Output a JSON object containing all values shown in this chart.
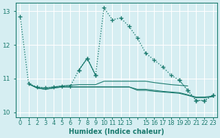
{
  "xlabel": "Humidex (Indice chaleur)",
  "background_color": "#d6eef2",
  "grid_color": "#ffffff",
  "line_color": "#1a7a6e",
  "xlim": [
    -0.5,
    23.5
  ],
  "ylim": [
    9.85,
    13.25
  ],
  "yticks": [
    10,
    11,
    12,
    13
  ],
  "xtick_labels": [
    "0",
    "1",
    "2",
    "3",
    "4",
    "5",
    "6",
    "7",
    "8",
    "9",
    "10",
    "11",
    "12",
    "13",
    "",
    "15",
    "16",
    "17",
    "18",
    "19",
    "20",
    "21",
    "22",
    "23"
  ],
  "series": [
    {
      "x": [
        0,
        1,
        2,
        3,
        4,
        5,
        6,
        7,
        8,
        9,
        10,
        11,
        12,
        13,
        14,
        15,
        16,
        17,
        18,
        19,
        20,
        21,
        22,
        23
      ],
      "y": [
        12.85,
        10.85,
        10.75,
        10.72,
        10.75,
        10.78,
        10.78,
        11.25,
        11.6,
        11.1,
        13.1,
        12.75,
        12.8,
        12.55,
        12.2,
        11.75,
        11.55,
        11.35,
        11.1,
        10.95,
        10.65,
        10.35,
        10.35,
        10.5
      ],
      "linestyle": "dotted",
      "linewidth": 1.0,
      "marker": "+",
      "markersize": 4
    },
    {
      "x": [
        1,
        2,
        3,
        4,
        5,
        6,
        7,
        8,
        9,
        10,
        11,
        12,
        13,
        14,
        15,
        16,
        17,
        18,
        19,
        20
      ],
      "y": [
        10.84,
        10.74,
        10.72,
        10.75,
        10.78,
        10.8,
        10.82,
        10.82,
        10.82,
        10.92,
        10.92,
        10.92,
        10.92,
        10.92,
        10.92,
        10.88,
        10.85,
        10.82,
        10.8,
        10.78
      ],
      "linestyle": "solid",
      "linewidth": 0.8,
      "marker": null,
      "markersize": 0
    },
    {
      "x": [
        1,
        2,
        3,
        4,
        5,
        6,
        7,
        8,
        9,
        10,
        11,
        12,
        13,
        14,
        15,
        16,
        17,
        18,
        19,
        20,
        21,
        22,
        23
      ],
      "y": [
        10.84,
        10.72,
        10.68,
        10.72,
        10.75,
        10.75,
        10.75,
        10.75,
        10.75,
        10.75,
        10.75,
        10.75,
        10.75,
        10.68,
        10.68,
        10.65,
        10.62,
        10.6,
        10.58,
        10.52,
        10.45,
        10.45,
        10.48
      ],
      "linestyle": "solid",
      "linewidth": 0.8,
      "marker": null,
      "markersize": 0
    },
    {
      "x": [
        1,
        2,
        3,
        4,
        5,
        6,
        7,
        8,
        9,
        10,
        11,
        12,
        13,
        14,
        15,
        16,
        17,
        18,
        19,
        20,
        21,
        22,
        23
      ],
      "y": [
        10.84,
        10.72,
        10.68,
        10.72,
        10.75,
        10.75,
        10.75,
        10.75,
        10.75,
        10.75,
        10.75,
        10.75,
        10.75,
        10.65,
        10.65,
        10.62,
        10.6,
        10.58,
        10.56,
        10.5,
        10.43,
        10.43,
        10.46
      ],
      "linestyle": "solid",
      "linewidth": 0.8,
      "marker": null,
      "markersize": 0
    },
    {
      "x": [
        7,
        8,
        9
      ],
      "y": [
        11.25,
        11.6,
        11.1
      ],
      "linestyle": "solid",
      "linewidth": 0.9,
      "marker": "+",
      "markersize": 4
    },
    {
      "x": [
        19,
        20,
        21,
        22,
        23
      ],
      "y": [
        10.95,
        10.65,
        10.35,
        10.35,
        10.5
      ],
      "linestyle": "dotted",
      "linewidth": 0.9,
      "marker": "+",
      "markersize": 4
    }
  ]
}
